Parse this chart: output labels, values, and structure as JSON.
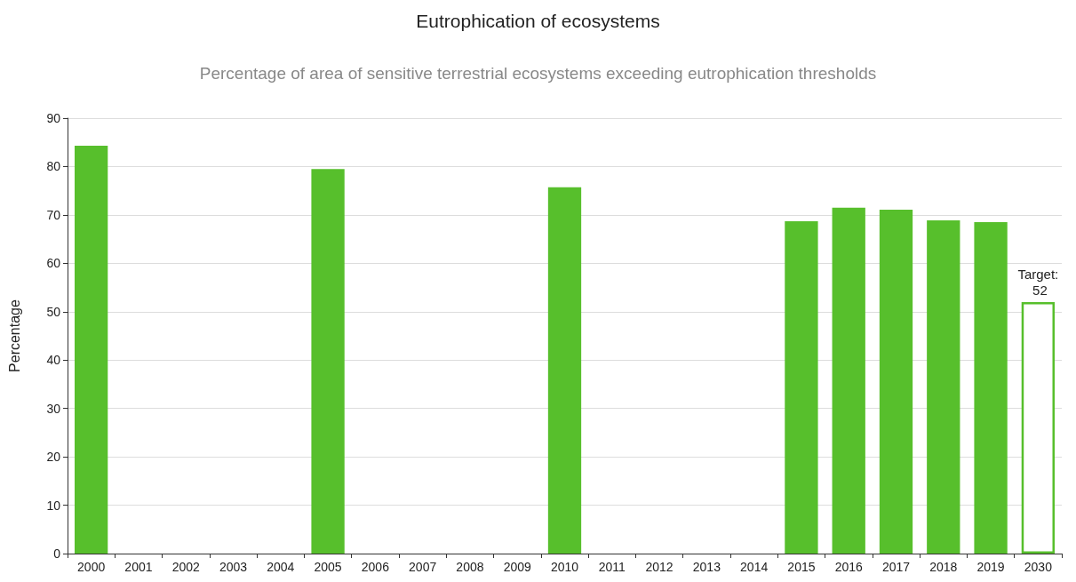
{
  "chart_data": {
    "type": "bar",
    "title": "Eutrophication of ecosystems",
    "subtitle": "Percentage of area of sensitive terrestrial ecosystems exceeding eutrophication thresholds",
    "ylabel": "Percentage",
    "categories": [
      "2000",
      "2001",
      "2002",
      "2003",
      "2004",
      "2005",
      "2006",
      "2007",
      "2008",
      "2009",
      "2010",
      "2011",
      "2012",
      "2013",
      "2014",
      "2015",
      "2016",
      "2017",
      "2018",
      "2019",
      "2030"
    ],
    "series": [
      {
        "color": "#57bf2c",
        "values": [
          84.3,
          null,
          null,
          null,
          null,
          79.5,
          null,
          null,
          null,
          null,
          75.7,
          null,
          null,
          null,
          null,
          68.7,
          71.5,
          71.1,
          68.9,
          68.5,
          null
        ]
      },
      {
        "color": "#57bf2c",
        "values": [
          null,
          null,
          null,
          null,
          null,
          null,
          null,
          null,
          null,
          null,
          null,
          null,
          null,
          null,
          null,
          null,
          null,
          null,
          null,
          null,
          52
        ]
      }
    ],
    "annotations": [
      {
        "text": "Target: 52",
        "x": "2030",
        "y": 52
      }
    ],
    "ylim": [
      0,
      90
    ],
    "yticks": [
      0,
      10,
      20,
      30,
      40,
      50,
      60,
      70,
      80,
      90
    ],
    "grid": "y"
  }
}
